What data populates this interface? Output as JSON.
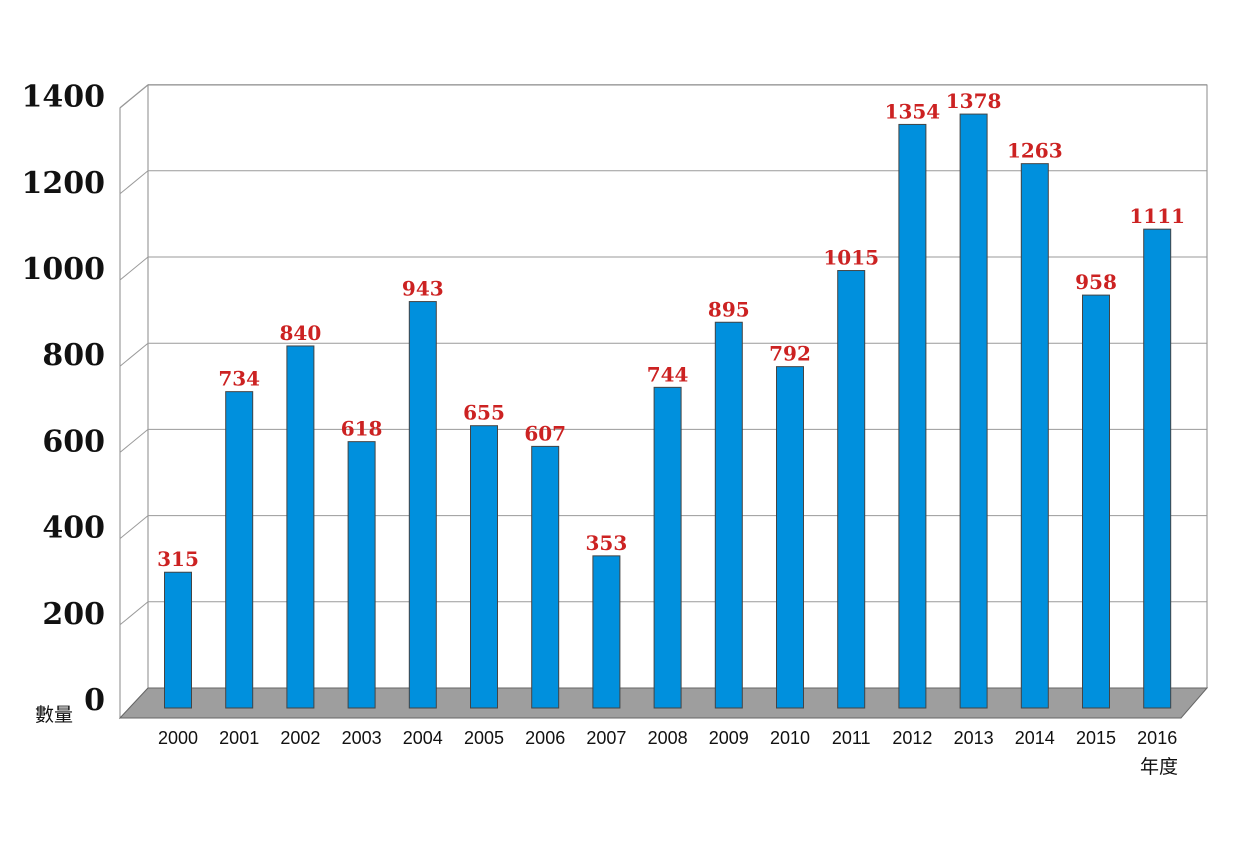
{
  "chart_data": {
    "type": "bar",
    "categories": [
      "2000",
      "2001",
      "2002",
      "2003",
      "2004",
      "2005",
      "2006",
      "2007",
      "2008",
      "2009",
      "2010",
      "2011",
      "2012",
      "2013",
      "2014",
      "2015",
      "2016"
    ],
    "values": [
      315,
      734,
      840,
      618,
      943,
      655,
      607,
      353,
      744,
      895,
      792,
      1015,
      1354,
      1378,
      1263,
      958,
      1111
    ],
    "yticks": [
      "0",
      "200",
      "400",
      "600",
      "800",
      "1000",
      "1200",
      "1400"
    ],
    "ylim": [
      0,
      1400
    ],
    "xlabel": "年度",
    "ylabel": "數量",
    "title": "",
    "grid": true,
    "bar_color": "#0090dd",
    "label_color": "#cc2222",
    "floor_color": "#9e9e9e"
  }
}
